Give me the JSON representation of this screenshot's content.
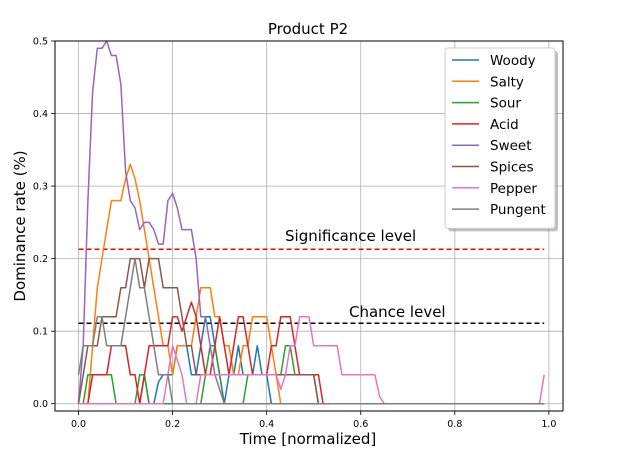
{
  "chart_data": {
    "type": "line",
    "title": "Product P2",
    "xlabel": "Time [normalized]",
    "ylabel": "Dominance rate (%)",
    "xlim": [
      -0.05,
      1.03
    ],
    "ylim": [
      -0.01,
      0.5
    ],
    "xticks": [
      "0.0",
      "0.2",
      "0.4",
      "0.6",
      "0.8",
      "1.0"
    ],
    "yticks": [
      "0.0",
      "0.1",
      "0.2",
      "0.3",
      "0.4",
      "0.5"
    ],
    "grid": true,
    "legend_position": "top-right",
    "x": [
      0.0,
      0.01,
      0.02,
      0.03,
      0.04,
      0.05,
      0.06,
      0.07,
      0.08,
      0.09,
      0.1,
      0.11,
      0.12,
      0.13,
      0.14,
      0.15,
      0.16,
      0.17,
      0.18,
      0.19,
      0.2,
      0.21,
      0.22,
      0.23,
      0.24,
      0.25,
      0.26,
      0.27,
      0.28,
      0.29,
      0.3,
      0.31,
      0.32,
      0.33,
      0.34,
      0.35,
      0.36,
      0.37,
      0.38,
      0.39,
      0.4,
      0.41,
      0.42,
      0.43,
      0.44,
      0.45,
      0.46,
      0.47,
      0.48,
      0.49,
      0.5,
      0.51,
      0.52,
      0.53,
      0.54,
      0.55,
      0.56,
      0.57,
      0.58,
      0.59,
      0.6,
      0.61,
      0.62,
      0.63,
      0.64,
      0.65,
      0.66,
      0.67,
      0.68,
      0.69,
      0.7,
      0.71,
      0.72,
      0.73,
      0.74,
      0.75,
      0.76,
      0.77,
      0.78,
      0.79,
      0.8,
      0.81,
      0.82,
      0.83,
      0.84,
      0.85,
      0.86,
      0.87,
      0.88,
      0.89,
      0.9,
      0.91,
      0.92,
      0.93,
      0.94,
      0.95,
      0.96,
      0.97,
      0.98,
      0.99
    ],
    "series": [
      {
        "name": "Woody",
        "color": "#1f77b4",
        "values": [
          0,
          0,
          0,
          0,
          0,
          0,
          0,
          0,
          0,
          0,
          0,
          0,
          0,
          0,
          0.04,
          0,
          0,
          0.03,
          0.04,
          0.04,
          0.04,
          0.08,
          0.08,
          0.08,
          0.04,
          0.04,
          0.08,
          0.12,
          0.12,
          0.08,
          0.04,
          0,
          0.04,
          0.04,
          0.08,
          0.04,
          0.04,
          0.04,
          0.08,
          0.04,
          0.04,
          0,
          0,
          0,
          0,
          0,
          0,
          0,
          0,
          0,
          0,
          0,
          0,
          0,
          0,
          0,
          0,
          0,
          0,
          0,
          0,
          0,
          0,
          0,
          0,
          0,
          0,
          0,
          0,
          0,
          0,
          0,
          0,
          0,
          0,
          0,
          0,
          0,
          0,
          0,
          0,
          0,
          0,
          0,
          0,
          0,
          0,
          0,
          0,
          0,
          0,
          0,
          0,
          0,
          0,
          0,
          0,
          0,
          0,
          0
        ]
      },
      {
        "name": "Salty",
        "color": "#ff7f0e",
        "values": [
          0,
          0,
          0,
          0.08,
          0.16,
          0.2,
          0.24,
          0.28,
          0.28,
          0.28,
          0.31,
          0.33,
          0.31,
          0.28,
          0.24,
          0.2,
          0.16,
          0.12,
          0.08,
          0.08,
          0.04,
          0.08,
          0.08,
          0.08,
          0.08,
          0.12,
          0.16,
          0.16,
          0.16,
          0.12,
          0.12,
          0.08,
          0.08,
          0.04,
          0.04,
          0.08,
          0.08,
          0.12,
          0.12,
          0.12,
          0.12,
          0.08,
          0.04,
          0,
          0,
          0,
          0,
          0,
          0,
          0,
          0,
          0,
          0,
          0,
          0,
          0,
          0,
          0,
          0,
          0,
          0,
          0,
          0,
          0,
          0,
          0,
          0,
          0,
          0,
          0,
          0,
          0,
          0,
          0,
          0,
          0,
          0,
          0,
          0,
          0,
          0,
          0,
          0,
          0,
          0,
          0,
          0,
          0,
          0,
          0,
          0,
          0,
          0,
          0,
          0,
          0,
          0,
          0,
          0,
          0
        ]
      },
      {
        "name": "Sour",
        "color": "#2ca02c",
        "values": [
          0,
          0,
          0.04,
          0.04,
          0.04,
          0.04,
          0.04,
          0.04,
          0,
          0,
          0,
          0,
          0,
          0.04,
          0.04,
          0,
          0,
          0,
          0,
          0,
          0,
          0,
          0,
          0,
          0,
          0,
          0,
          0.04,
          0.08,
          0.08,
          0.04,
          0,
          0,
          0,
          0,
          0,
          0.04,
          0.04,
          0.04,
          0.04,
          0.04,
          0.04,
          0.04,
          0.04,
          0.08,
          0.08,
          0.04,
          0.04,
          0.04,
          0.04,
          0.04,
          0,
          0,
          0,
          0,
          0,
          0,
          0,
          0,
          0,
          0,
          0,
          0,
          0,
          0,
          0,
          0,
          0,
          0,
          0,
          0,
          0,
          0,
          0,
          0,
          0,
          0,
          0,
          0,
          0,
          0,
          0,
          0,
          0,
          0,
          0,
          0,
          0,
          0,
          0,
          0,
          0,
          0,
          0,
          0,
          0,
          0,
          0,
          0,
          0
        ]
      },
      {
        "name": "Acid",
        "color": "#d62728",
        "values": [
          0,
          0,
          0,
          0.04,
          0.04,
          0.04,
          0.04,
          0.08,
          0.08,
          0.08,
          0.08,
          0.04,
          0.04,
          0,
          0.04,
          0.08,
          0.08,
          0.08,
          0.08,
          0.08,
          0.12,
          0.12,
          0.1,
          0.12,
          0.14,
          0.12,
          0.08,
          0.04,
          0.04,
          0.08,
          0.12,
          0.08,
          0.04,
          0.08,
          0.12,
          0.12,
          0.08,
          0.04,
          0.04,
          0.04,
          0.04,
          0.08,
          0.08,
          0.12,
          0.12,
          0.12,
          0.08,
          0.04,
          0.04,
          0.04,
          0.04,
          0.04,
          0,
          0,
          0,
          0,
          0,
          0,
          0,
          0,
          0,
          0,
          0,
          0,
          0,
          0,
          0,
          0,
          0,
          0,
          0,
          0,
          0,
          0,
          0,
          0,
          0,
          0,
          0,
          0,
          0,
          0,
          0,
          0,
          0,
          0,
          0,
          0,
          0,
          0,
          0,
          0,
          0,
          0,
          0,
          0,
          0,
          0,
          0,
          0
        ]
      },
      {
        "name": "Sweet",
        "color": "#9467bd",
        "values": [
          0,
          0.08,
          0.28,
          0.43,
          0.49,
          0.49,
          0.5,
          0.48,
          0.48,
          0.44,
          0.32,
          0.28,
          0.27,
          0.24,
          0.25,
          0.25,
          0.24,
          0.22,
          0.22,
          0.28,
          0.29,
          0.27,
          0.24,
          0.24,
          0.24,
          0.2,
          0.12,
          0.12,
          0.08,
          0.04,
          0.02,
          0,
          0,
          0,
          0,
          0,
          0,
          0,
          0,
          0,
          0,
          0,
          0,
          0,
          0,
          0,
          0,
          0,
          0,
          0,
          0,
          0,
          0,
          0,
          0,
          0,
          0,
          0,
          0,
          0,
          0,
          0,
          0,
          0,
          0,
          0,
          0,
          0,
          0,
          0,
          0,
          0,
          0,
          0,
          0,
          0,
          0,
          0,
          0,
          0,
          0,
          0,
          0,
          0,
          0,
          0,
          0,
          0,
          0,
          0,
          0,
          0,
          0,
          0,
          0,
          0,
          0,
          0,
          0,
          0
        ]
      },
      {
        "name": "Spices",
        "color": "#8c564b",
        "values": [
          0,
          0.04,
          0.08,
          0.08,
          0.08,
          0.12,
          0.12,
          0.12,
          0.12,
          0.16,
          0.16,
          0.2,
          0.2,
          0.2,
          0.16,
          0.2,
          0.2,
          0.2,
          0.16,
          0.16,
          0.16,
          0.16,
          0.12,
          0.08,
          0.08,
          0.04,
          0.04,
          0.04,
          0.04,
          0.04,
          0.04,
          0.04,
          0.04,
          0.04,
          0.04,
          0.04,
          0.04,
          0.04,
          0.04,
          0.04,
          0.04,
          0.04,
          0.04,
          0.04,
          0.04,
          0.04,
          0.04,
          0.04,
          0.04,
          0.04,
          0.04,
          0,
          0,
          0,
          0,
          0,
          0,
          0,
          0,
          0,
          0,
          0,
          0,
          0,
          0,
          0,
          0,
          0,
          0,
          0,
          0,
          0,
          0,
          0,
          0,
          0,
          0,
          0,
          0,
          0,
          0,
          0,
          0,
          0,
          0,
          0,
          0,
          0,
          0,
          0,
          0,
          0,
          0,
          0,
          0,
          0,
          0,
          0,
          0,
          0
        ]
      },
      {
        "name": "Pepper",
        "color": "#e377c2",
        "values": [
          0,
          0,
          0,
          0,
          0,
          0,
          0,
          0,
          0,
          0,
          0,
          0,
          0,
          0,
          0,
          0,
          0,
          0,
          0,
          0.04,
          0.08,
          0.06,
          0.04,
          0,
          0,
          0,
          0.04,
          0.04,
          0.04,
          0.04,
          0.04,
          0.04,
          0.04,
          0.04,
          0.04,
          0.04,
          0.04,
          0.04,
          0.04,
          0.04,
          0.04,
          0.04,
          0.04,
          0.02,
          0.04,
          0.08,
          0.08,
          0.12,
          0.12,
          0.12,
          0.08,
          0.08,
          0.08,
          0.08,
          0.08,
          0.08,
          0.04,
          0.04,
          0.04,
          0.04,
          0.04,
          0.04,
          0.04,
          0.04,
          0.01,
          0,
          0,
          0,
          0,
          0,
          0,
          0,
          0,
          0,
          0,
          0,
          0,
          0,
          0,
          0,
          0,
          0,
          0,
          0,
          0,
          0,
          0,
          0,
          0,
          0,
          0,
          0,
          0,
          0,
          0,
          0,
          0,
          0,
          0,
          0.04
        ]
      },
      {
        "name": "Pungent",
        "color": "#7f7f7f",
        "values": [
          0.04,
          0.08,
          0.08,
          0.08,
          0.12,
          0.12,
          0.08,
          0.08,
          0.08,
          0.08,
          0.12,
          0.16,
          0.2,
          0.16,
          0.16,
          0.12,
          0.08,
          0.04,
          0.04,
          0.04,
          0,
          0,
          0,
          0,
          0,
          0,
          0,
          0,
          0,
          0,
          0,
          0,
          0,
          0,
          0,
          0,
          0,
          0,
          0,
          0,
          0,
          0,
          0,
          0,
          0,
          0,
          0,
          0,
          0,
          0,
          0,
          0,
          0,
          0,
          0,
          0,
          0,
          0,
          0,
          0,
          0,
          0,
          0,
          0,
          0,
          0,
          0,
          0,
          0,
          0,
          0,
          0,
          0,
          0,
          0,
          0,
          0,
          0,
          0,
          0,
          0,
          0,
          0,
          0,
          0,
          0,
          0,
          0,
          0,
          0,
          0,
          0,
          0,
          0,
          0,
          0,
          0,
          0,
          0,
          0
        ]
      }
    ],
    "reference_lines": [
      {
        "label": "Significance level",
        "y": 0.213,
        "color": "#ff0000"
      },
      {
        "label": "Chance level",
        "y": 0.111,
        "color": "#000000"
      }
    ]
  }
}
